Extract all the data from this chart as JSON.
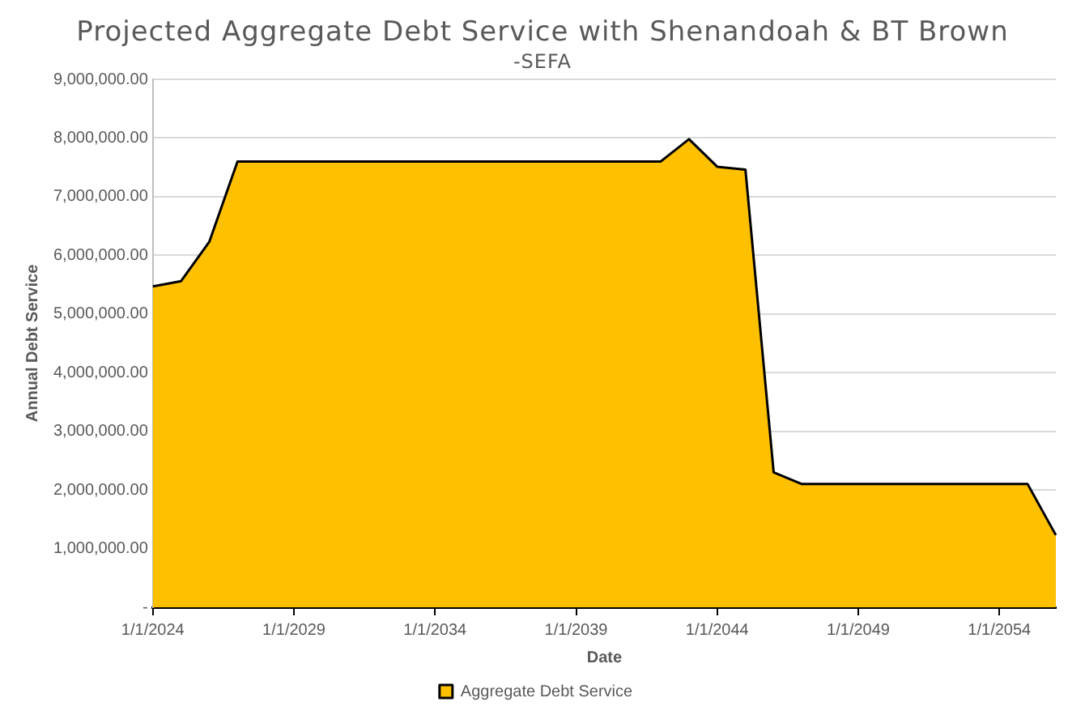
{
  "chart_data": {
    "type": "area",
    "title": "Projected Aggregate Debt Service with Shenandoah & BT Brown",
    "subtitle": "-SEFA",
    "xlabel": "Date",
    "ylabel": "Annual Debt Service",
    "categories": [
      "1/1/2024",
      null,
      null,
      null,
      null,
      "1/1/2029",
      null,
      null,
      null,
      null,
      "1/1/2034",
      null,
      null,
      null,
      null,
      "1/1/2039",
      null,
      null,
      null,
      null,
      "1/1/2044",
      null,
      null,
      null,
      null,
      "1/1/2049",
      null,
      null,
      null,
      null,
      "1/1/2054",
      null,
      null
    ],
    "series": [
      {
        "name": "Aggregate Debt Service",
        "color": "#ffc000",
        "values": [
          5470000,
          5560000,
          6230000,
          7600000,
          7600000,
          7600000,
          7600000,
          7600000,
          7600000,
          7600000,
          7600000,
          7600000,
          7600000,
          7600000,
          7600000,
          7600000,
          7600000,
          7600000,
          7600000,
          7980000,
          7510000,
          7460000,
          2300000,
          2100000,
          2100000,
          2100000,
          2100000,
          2100000,
          2100000,
          2100000,
          2100000,
          2100000,
          1230000
        ]
      }
    ],
    "ylim": [
      0,
      9000000
    ],
    "yticks": [
      {
        "value": 0,
        "label": "-"
      },
      {
        "value": 1000000,
        "label": "1,000,000.00"
      },
      {
        "value": 2000000,
        "label": "2,000,000.00"
      },
      {
        "value": 3000000,
        "label": "3,000,000.00"
      },
      {
        "value": 4000000,
        "label": "4,000,000.00"
      },
      {
        "value": 5000000,
        "label": "5,000,000.00"
      },
      {
        "value": 6000000,
        "label": "6,000,000.00"
      },
      {
        "value": 7000000,
        "label": "7,000,000.00"
      },
      {
        "value": 8000000,
        "label": "8,000,000.00"
      },
      {
        "value": 9000000,
        "label": "9,000,000.00"
      }
    ],
    "grid": "y",
    "legend": "bottom"
  }
}
